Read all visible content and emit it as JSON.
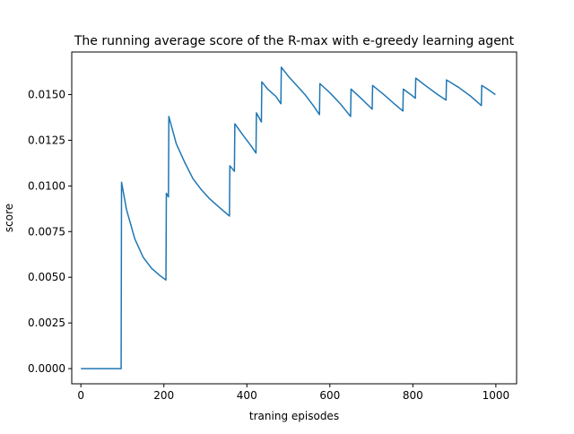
{
  "chart_data": {
    "type": "line",
    "title": "The running average score of the R-max with e-greedy learning agent",
    "xlabel": "traning episodes",
    "ylabel": "score",
    "xlim": [
      -22,
      1050
    ],
    "ylim": [
      -0.00083,
      0.01733
    ],
    "x_ticks": [
      0,
      200,
      400,
      600,
      800,
      1000
    ],
    "x_tick_labels": [
      "0",
      "200",
      "400",
      "600",
      "800",
      "1000"
    ],
    "y_ticks": [
      0.0,
      0.0025,
      0.005,
      0.0075,
      0.01,
      0.0125,
      0.015
    ],
    "y_tick_labels": [
      "0.0000",
      "0.0025",
      "0.0050",
      "0.0075",
      "0.0100",
      "0.0125",
      "0.0150"
    ],
    "grid": false,
    "legend": "none",
    "colors": {
      "line": "#1f77b4",
      "axes": "#000000",
      "background": "#ffffff"
    },
    "series": [
      {
        "points": [
          [
            0,
            0.0
          ],
          [
            97,
            0.0
          ],
          [
            98,
            0.0102
          ],
          [
            110,
            0.0087
          ],
          [
            130,
            0.0071
          ],
          [
            150,
            0.0061
          ],
          [
            170,
            0.0055
          ],
          [
            190,
            0.0051
          ],
          [
            205,
            0.00485
          ],
          [
            206,
            0.0096
          ],
          [
            211,
            0.0094
          ],
          [
            212,
            0.0138
          ],
          [
            230,
            0.0123
          ],
          [
            250,
            0.0113
          ],
          [
            270,
            0.0104
          ],
          [
            290,
            0.0098
          ],
          [
            310,
            0.0093
          ],
          [
            330,
            0.0089
          ],
          [
            358,
            0.00835
          ],
          [
            359,
            0.0111
          ],
          [
            370,
            0.0108
          ],
          [
            371,
            0.0134
          ],
          [
            390,
            0.0128
          ],
          [
            410,
            0.0122
          ],
          [
            422,
            0.0118
          ],
          [
            423,
            0.014
          ],
          [
            435,
            0.0135
          ],
          [
            436,
            0.0157
          ],
          [
            450,
            0.0153
          ],
          [
            470,
            0.0149
          ],
          [
            482,
            0.0145
          ],
          [
            483,
            0.0165
          ],
          [
            500,
            0.016
          ],
          [
            520,
            0.0155
          ],
          [
            540,
            0.015
          ],
          [
            560,
            0.0144
          ],
          [
            575,
            0.0139
          ],
          [
            576,
            0.0156
          ],
          [
            600,
            0.0151
          ],
          [
            625,
            0.0145
          ],
          [
            650,
            0.0138
          ],
          [
            651,
            0.0153
          ],
          [
            675,
            0.0148
          ],
          [
            702,
            0.0142
          ],
          [
            703,
            0.0155
          ],
          [
            730,
            0.015
          ],
          [
            755,
            0.0145
          ],
          [
            776,
            0.0141
          ],
          [
            777,
            0.0153
          ],
          [
            795,
            0.015
          ],
          [
            806,
            0.0148
          ],
          [
            807,
            0.0159
          ],
          [
            830,
            0.0155
          ],
          [
            860,
            0.015
          ],
          [
            880,
            0.0147
          ],
          [
            881,
            0.0158
          ],
          [
            910,
            0.0154
          ],
          [
            940,
            0.0149
          ],
          [
            965,
            0.0144
          ],
          [
            966,
            0.0155
          ],
          [
            980,
            0.0153
          ],
          [
            999,
            0.015
          ]
        ]
      }
    ]
  }
}
